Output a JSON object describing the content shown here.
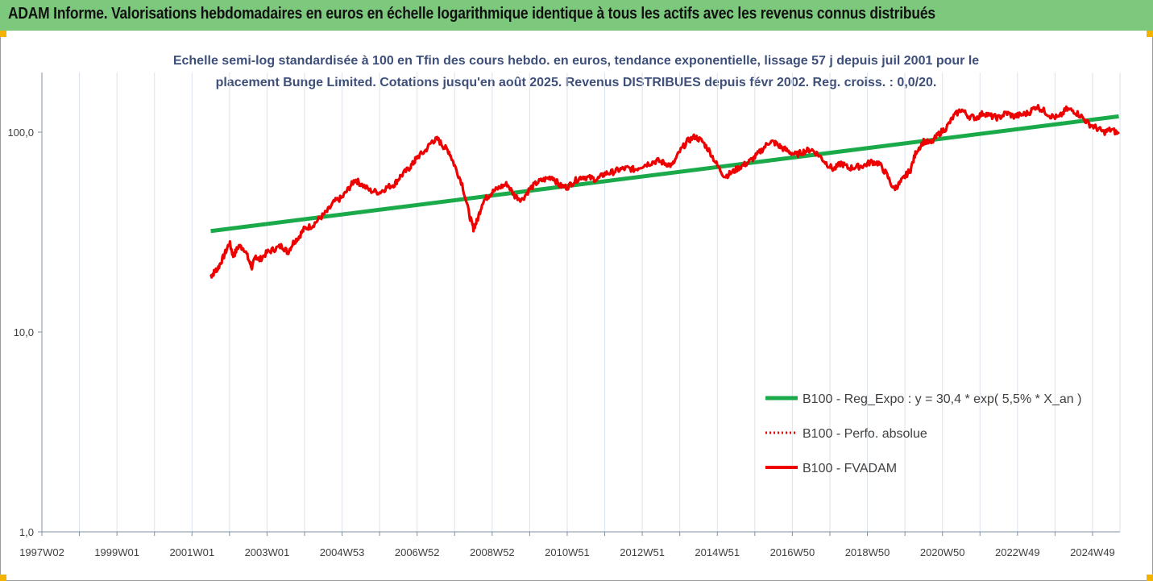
{
  "banner": {
    "title": "ADAM Informe. Valorisations hebdomadaires en euros en échelle logarithmique identique à tous les actifs avec les revenus connus distribués"
  },
  "colors": {
    "banner": "#7cc87c",
    "trend": "#1aaa4a",
    "series": "#ee0000",
    "grid": "#dbe3ec",
    "accent": "#f2b400"
  },
  "chart_data": {
    "type": "line",
    "title_lines": [
      "Echelle semi-log standardisée à 100 en Tfin des cours hebdo. en euros, tendance exponentielle, lissage 57 j depuis juil 2001 pour le",
      "placement Bunge Limited. Cotations jusqu'en août 2025. Revenus DISTRIBUES depuis févr 2002. Reg. croiss. : 0,0/20."
    ],
    "y_scale": "log",
    "ylim": [
      1,
      200
    ],
    "y_ticks": [
      {
        "value": 1,
        "label": "1,0"
      },
      {
        "value": 10,
        "label": "10,0"
      },
      {
        "value": 100,
        "label": "100,0"
      }
    ],
    "xlim": [
      1997.0,
      2025.75
    ],
    "x_ticks": [
      {
        "value": 1997.0,
        "label": "1997W02"
      },
      {
        "value": 1999.0,
        "label": "1999W01"
      },
      {
        "value": 2001.0,
        "label": "2001W01"
      },
      {
        "value": 2003.0,
        "label": "2003W01"
      },
      {
        "value": 2005.0,
        "label": "2004W53"
      },
      {
        "value": 2007.0,
        "label": "2006W52"
      },
      {
        "value": 2009.0,
        "label": "2008W52"
      },
      {
        "value": 2011.0,
        "label": "2010W51"
      },
      {
        "value": 2013.0,
        "label": "2012W51"
      },
      {
        "value": 2015.0,
        "label": "2014W51"
      },
      {
        "value": 2017.0,
        "label": "2016W50"
      },
      {
        "value": 2019.0,
        "label": "2018W50"
      },
      {
        "value": 2021.0,
        "label": "2020W50"
      },
      {
        "value": 2023.0,
        "label": "2022W49"
      },
      {
        "value": 2025.0,
        "label": "2024W49"
      }
    ],
    "grid": {
      "vertical": true,
      "horizontal": false
    },
    "legend_position": "right-middle",
    "series": [
      {
        "name": "B100 - Reg_Expo : y = 30,4 * exp( 5,5% *  X_an )",
        "style": "solid-thick",
        "color": "#1aaa4a",
        "x": [
          2001.5,
          2025.7
        ],
        "y": [
          32.0,
          120.0
        ]
      },
      {
        "name": "B100 - Perfo. absolue",
        "style": "dotted",
        "color": "#ee0000",
        "x": [],
        "y": []
      },
      {
        "name": "B100 - FVADAM",
        "style": "solid-thick",
        "color": "#ee0000",
        "x": [
          2001.5,
          2001.6,
          2001.7,
          2001.85,
          2002.0,
          2002.1,
          2002.25,
          2002.4,
          2002.55,
          2002.6,
          2002.7,
          2002.8,
          2003.0,
          2003.2,
          2003.4,
          2003.55,
          2003.7,
          2003.85,
          2004.0,
          2004.2,
          2004.4,
          2004.6,
          2004.8,
          2005.0,
          2005.2,
          2005.35,
          2005.5,
          2005.75,
          2006.0,
          2006.2,
          2006.4,
          2006.55,
          2006.75,
          2006.9,
          2007.0,
          2007.2,
          2007.4,
          2007.55,
          2007.7,
          2007.85,
          2008.0,
          2008.2,
          2008.4,
          2008.5,
          2008.6,
          2008.75,
          2008.9,
          2009.0,
          2009.2,
          2009.4,
          2009.6,
          2009.8,
          2010.0,
          2010.2,
          2010.4,
          2010.6,
          2010.8,
          2011.0,
          2011.2,
          2011.4,
          2011.6,
          2011.8,
          2012.0,
          2012.2,
          2012.4,
          2012.6,
          2012.8,
          2013.0,
          2013.2,
          2013.4,
          2013.6,
          2013.8,
          2014.0,
          2014.2,
          2014.4,
          2014.6,
          2014.8,
          2015.0,
          2015.2,
          2015.4,
          2015.6,
          2015.8,
          2016.0,
          2016.2,
          2016.4,
          2016.55,
          2016.7,
          2016.9,
          2017.1,
          2017.3,
          2017.5,
          2017.7,
          2017.9,
          2018.1,
          2018.3,
          2018.5,
          2018.7,
          2018.9,
          2019.1,
          2019.3,
          2019.5,
          2019.7,
          2019.85,
          2020.0,
          2020.15,
          2020.3,
          2020.5,
          2020.7,
          2020.9,
          2021.1,
          2021.3,
          2021.5,
          2021.7,
          2021.9,
          2022.1,
          2022.3,
          2022.5,
          2022.7,
          2022.9,
          2023.1,
          2023.3,
          2023.5,
          2023.7,
          2023.9,
          2024.1,
          2024.3,
          2024.5,
          2024.7,
          2024.9,
          2025.1,
          2025.3,
          2025.5,
          2025.7
        ],
        "y": [
          19,
          20,
          21,
          24,
          28,
          24,
          27,
          26,
          22,
          21,
          24,
          23,
          25,
          26,
          27,
          25,
          28,
          30,
          33,
          34,
          37,
          40,
          45,
          47,
          53,
          58,
          55,
          51,
          50,
          53,
          55,
          60,
          65,
          70,
          75,
          80,
          90,
          92,
          85,
          80,
          68,
          55,
          38,
          33,
          36,
          45,
          48,
          50,
          53,
          55,
          48,
          46,
          52,
          56,
          58,
          60,
          54,
          53,
          57,
          60,
          59,
          58,
          62,
          63,
          65,
          66,
          65,
          68,
          70,
          72,
          70,
          68,
          80,
          90,
          95,
          90,
          80,
          68,
          60,
          63,
          67,
          70,
          75,
          82,
          90,
          88,
          84,
          80,
          77,
          80,
          82,
          77,
          70,
          65,
          70,
          66,
          67,
          68,
          71,
          70,
          62,
          52,
          55,
          60,
          65,
          80,
          90,
          88,
          98,
          105,
          120,
          130,
          120,
          118,
          125,
          120,
          118,
          125,
          120,
          122,
          125,
          135,
          128,
          120,
          118,
          130,
          128,
          120,
          110,
          105,
          100,
          103,
          98
        ]
      }
    ]
  }
}
